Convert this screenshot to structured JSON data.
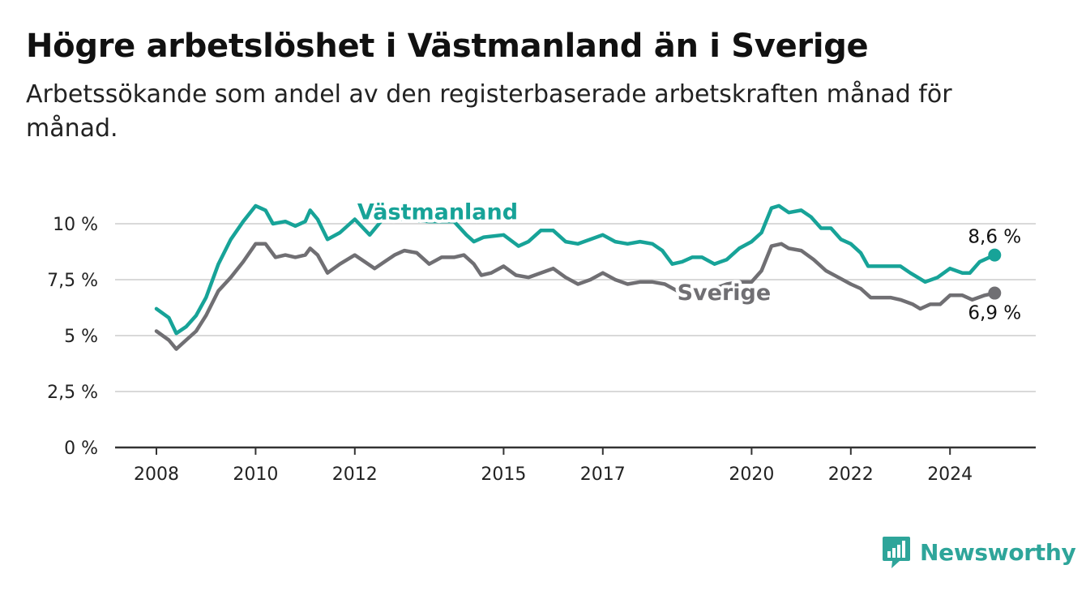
{
  "header": {
    "title": "Högre arbetslöshet i Västmanland än i Sverige",
    "subtitle": "Arbetssökande som andel av den registerbaserade arbetskraften månad för månad."
  },
  "brand": {
    "name": "Newsworthy",
    "logo_icon": "bar-chart-speech-bubble-icon",
    "color": "#2ea59a"
  },
  "chart_data": {
    "type": "line",
    "title": "Högre arbetslöshet i Västmanland än i Sverige",
    "subtitle": "Arbetssökande som andel av den registerbaserade arbetskraften månad för månad.",
    "xlabel": "",
    "ylabel": "",
    "xlim": [
      2008.0,
      2025.8
    ],
    "ylim": [
      0,
      10.5
    ],
    "grid": true,
    "x_ticks": [
      {
        "value": 2008,
        "label": "2008"
      },
      {
        "value": 2010,
        "label": "2010"
      },
      {
        "value": 2012,
        "label": "2012"
      },
      {
        "value": 2015,
        "label": "2015"
      },
      {
        "value": 2017,
        "label": "2017"
      },
      {
        "value": 2020,
        "label": "2020"
      },
      {
        "value": 2022,
        "label": "2022"
      },
      {
        "value": 2024,
        "label": "2024"
      }
    ],
    "y_ticks": [
      {
        "value": 0,
        "label": "0 %"
      },
      {
        "value": 2.5,
        "label": "2,5 %"
      },
      {
        "value": 5,
        "label": "5 %"
      },
      {
        "value": 7.5,
        "label": "7,5 %"
      },
      {
        "value": 10,
        "label": "10 %"
      }
    ],
    "series": [
      {
        "name": "Västmanland",
        "color": "#17a398",
        "end_label": "8,6 %",
        "label_position": "above",
        "points": [
          [
            2008.0,
            6.2
          ],
          [
            2008.25,
            5.8
          ],
          [
            2008.4,
            5.1
          ],
          [
            2008.6,
            5.4
          ],
          [
            2008.8,
            5.9
          ],
          [
            2009.0,
            6.7
          ],
          [
            2009.25,
            8.2
          ],
          [
            2009.5,
            9.3
          ],
          [
            2009.75,
            10.1
          ],
          [
            2010.0,
            10.8
          ],
          [
            2010.2,
            10.6
          ],
          [
            2010.35,
            10.0
          ],
          [
            2010.6,
            10.1
          ],
          [
            2010.8,
            9.9
          ],
          [
            2011.0,
            10.1
          ],
          [
            2011.1,
            10.6
          ],
          [
            2011.25,
            10.2
          ],
          [
            2011.45,
            9.3
          ],
          [
            2011.7,
            9.6
          ],
          [
            2012.0,
            10.2
          ],
          [
            2012.3,
            9.5
          ],
          [
            2012.6,
            10.3
          ],
          [
            2013.0,
            10.2
          ],
          [
            2013.5,
            10.1
          ],
          [
            2014.0,
            10.1
          ],
          [
            2014.25,
            9.5
          ],
          [
            2014.4,
            9.2
          ],
          [
            2014.6,
            9.4
          ],
          [
            2015.0,
            9.5
          ],
          [
            2015.3,
            9.0
          ],
          [
            2015.5,
            9.2
          ],
          [
            2015.75,
            9.7
          ],
          [
            2016.0,
            9.7
          ],
          [
            2016.25,
            9.2
          ],
          [
            2016.5,
            9.1
          ],
          [
            2016.75,
            9.3
          ],
          [
            2017.0,
            9.5
          ],
          [
            2017.25,
            9.2
          ],
          [
            2017.5,
            9.1
          ],
          [
            2017.75,
            9.2
          ],
          [
            2018.0,
            9.1
          ],
          [
            2018.2,
            8.8
          ],
          [
            2018.4,
            8.2
          ],
          [
            2018.6,
            8.3
          ],
          [
            2018.8,
            8.5
          ],
          [
            2019.0,
            8.5
          ],
          [
            2019.25,
            8.2
          ],
          [
            2019.5,
            8.4
          ],
          [
            2019.75,
            8.9
          ],
          [
            2020.0,
            9.2
          ],
          [
            2020.2,
            9.6
          ],
          [
            2020.4,
            10.7
          ],
          [
            2020.55,
            10.8
          ],
          [
            2020.75,
            10.5
          ],
          [
            2021.0,
            10.6
          ],
          [
            2021.2,
            10.3
          ],
          [
            2021.4,
            9.8
          ],
          [
            2021.6,
            9.8
          ],
          [
            2021.8,
            9.3
          ],
          [
            2022.0,
            9.1
          ],
          [
            2022.2,
            8.7
          ],
          [
            2022.35,
            8.1
          ],
          [
            2022.6,
            8.1
          ],
          [
            2022.8,
            8.1
          ],
          [
            2023.0,
            8.1
          ],
          [
            2023.2,
            7.8
          ],
          [
            2023.35,
            7.6
          ],
          [
            2023.5,
            7.4
          ],
          [
            2023.75,
            7.6
          ],
          [
            2024.0,
            8.0
          ],
          [
            2024.25,
            7.8
          ],
          [
            2024.4,
            7.8
          ],
          [
            2024.6,
            8.3
          ],
          [
            2024.9,
            8.6
          ]
        ]
      },
      {
        "name": "Sverige",
        "color": "#706f73",
        "end_label": "6,9 %",
        "label_position": "below",
        "points": [
          [
            2008.0,
            5.2
          ],
          [
            2008.25,
            4.8
          ],
          [
            2008.4,
            4.4
          ],
          [
            2008.6,
            4.8
          ],
          [
            2008.8,
            5.2
          ],
          [
            2009.0,
            5.9
          ],
          [
            2009.25,
            7.0
          ],
          [
            2009.5,
            7.6
          ],
          [
            2009.75,
            8.3
          ],
          [
            2010.0,
            9.1
          ],
          [
            2010.2,
            9.1
          ],
          [
            2010.4,
            8.5
          ],
          [
            2010.6,
            8.6
          ],
          [
            2010.8,
            8.5
          ],
          [
            2011.0,
            8.6
          ],
          [
            2011.1,
            8.9
          ],
          [
            2011.25,
            8.6
          ],
          [
            2011.45,
            7.8
          ],
          [
            2011.7,
            8.2
          ],
          [
            2012.0,
            8.6
          ],
          [
            2012.2,
            8.3
          ],
          [
            2012.4,
            8.0
          ],
          [
            2012.6,
            8.3
          ],
          [
            2012.8,
            8.6
          ],
          [
            2013.0,
            8.8
          ],
          [
            2013.25,
            8.7
          ],
          [
            2013.5,
            8.2
          ],
          [
            2013.75,
            8.5
          ],
          [
            2014.0,
            8.5
          ],
          [
            2014.2,
            8.6
          ],
          [
            2014.4,
            8.2
          ],
          [
            2014.55,
            7.7
          ],
          [
            2014.75,
            7.8
          ],
          [
            2015.0,
            8.1
          ],
          [
            2015.25,
            7.7
          ],
          [
            2015.5,
            7.6
          ],
          [
            2015.75,
            7.8
          ],
          [
            2016.0,
            8.0
          ],
          [
            2016.25,
            7.6
          ],
          [
            2016.5,
            7.3
          ],
          [
            2016.75,
            7.5
          ],
          [
            2017.0,
            7.8
          ],
          [
            2017.25,
            7.5
          ],
          [
            2017.5,
            7.3
          ],
          [
            2017.75,
            7.4
          ],
          [
            2018.0,
            7.4
          ],
          [
            2018.25,
            7.3
          ],
          [
            2018.5,
            7.0
          ],
          [
            2018.75,
            7.1
          ],
          [
            2019.0,
            7.0
          ],
          [
            2019.25,
            7.1
          ],
          [
            2019.5,
            7.3
          ],
          [
            2019.75,
            7.4
          ],
          [
            2020.0,
            7.4
          ],
          [
            2020.2,
            7.9
          ],
          [
            2020.4,
            9.0
          ],
          [
            2020.6,
            9.1
          ],
          [
            2020.75,
            8.9
          ],
          [
            2021.0,
            8.8
          ],
          [
            2021.25,
            8.4
          ],
          [
            2021.5,
            7.9
          ],
          [
            2021.75,
            7.6
          ],
          [
            2022.0,
            7.3
          ],
          [
            2022.2,
            7.1
          ],
          [
            2022.4,
            6.7
          ],
          [
            2022.6,
            6.7
          ],
          [
            2022.8,
            6.7
          ],
          [
            2023.0,
            6.6
          ],
          [
            2023.25,
            6.4
          ],
          [
            2023.4,
            6.2
          ],
          [
            2023.6,
            6.4
          ],
          [
            2023.8,
            6.4
          ],
          [
            2024.0,
            6.8
          ],
          [
            2024.25,
            6.8
          ],
          [
            2024.45,
            6.6
          ],
          [
            2024.7,
            6.8
          ],
          [
            2024.9,
            6.9
          ]
        ]
      }
    ]
  }
}
